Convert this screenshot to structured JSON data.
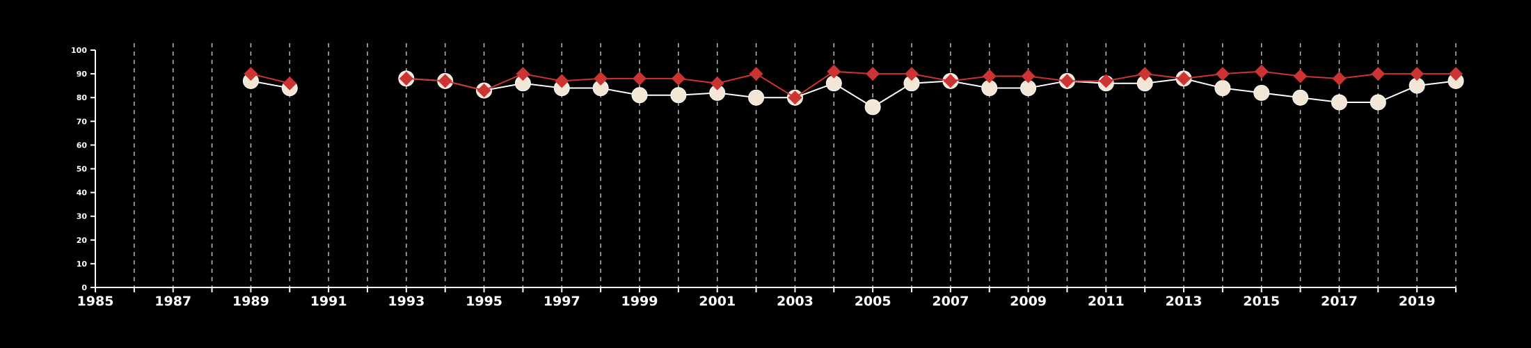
{
  "chart_data": {
    "type": "line",
    "x": [
      1985,
      1986,
      1987,
      1988,
      1989,
      1990,
      1991,
      1992,
      1993,
      1994,
      1995,
      1996,
      1997,
      1998,
      1999,
      2000,
      2001,
      2002,
      2003,
      2004,
      2005,
      2006,
      2007,
      2008,
      2009,
      2010,
      2011,
      2012,
      2013,
      2014,
      2015,
      2016,
      2017,
      2018,
      2019,
      2020
    ],
    "xlim": [
      1985,
      2020
    ],
    "ylim": [
      0,
      100
    ],
    "x_ticks": [
      1985,
      1987,
      1989,
      1991,
      1993,
      1995,
      1997,
      1999,
      2001,
      2003,
      2005,
      2007,
      2009,
      2011,
      2013,
      2015,
      2017,
      2019
    ],
    "x_tick_labels": [
      "1985",
      "1987",
      "1989",
      "1991",
      "1993",
      "1995",
      "1997",
      "1999",
      "2001",
      "2003",
      "2005",
      "2007",
      "2009",
      "2011",
      "2013",
      "2015",
      "2017",
      "2019"
    ],
    "y_ticks": [
      0,
      10,
      20,
      30,
      40,
      50,
      60,
      70,
      80,
      90,
      100
    ],
    "y_tick_labels": [
      "0",
      "10",
      "20",
      "30",
      "40",
      "50",
      "60",
      "70",
      "80",
      "90",
      "100"
    ],
    "vertical_grid": true,
    "horizontal_grid": false,
    "series": [
      {
        "color": "#f3e6d4",
        "marker": "circle",
        "line_color": "#ffffff",
        "values": [
          null,
          null,
          null,
          null,
          87,
          84,
          null,
          null,
          88,
          87,
          83,
          86,
          84,
          84,
          81,
          81,
          82,
          80,
          80,
          86,
          76,
          86,
          87,
          84,
          84,
          87,
          86,
          86,
          88,
          84,
          82,
          80,
          78,
          78,
          85,
          87
        ]
      },
      {
        "color": "#cc3333",
        "marker": "diamond",
        "line_color": "#cc3333",
        "values": [
          null,
          null,
          null,
          null,
          90,
          86,
          null,
          null,
          88,
          87,
          83,
          90,
          87,
          88,
          88,
          88,
          86,
          90,
          80,
          91,
          90,
          90,
          87,
          89,
          89,
          87,
          87,
          90,
          88,
          90,
          91,
          89,
          88,
          90,
          90,
          90
        ]
      }
    ]
  }
}
